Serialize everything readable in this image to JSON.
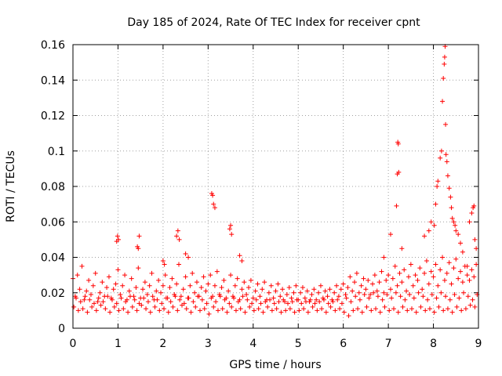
{
  "chart_data": {
    "type": "scatter",
    "title": "Day 185 of 2024, Rate Of TEC Index for receiver cpnt",
    "xlabel": "GPS time / hours",
    "ylabel": "ROTI / TECUs",
    "xlim": [
      0,
      9
    ],
    "ylim": [
      0,
      0.16
    ],
    "grid": true,
    "legend": "none",
    "marker": "plus",
    "color": "#ff0000",
    "xticks": [
      {
        "value": 0,
        "label": "0"
      },
      {
        "value": 1,
        "label": "1"
      },
      {
        "value": 2,
        "label": "2"
      },
      {
        "value": 3,
        "label": "3"
      },
      {
        "value": 4,
        "label": "4"
      },
      {
        "value": 5,
        "label": "5"
      },
      {
        "value": 6,
        "label": "6"
      },
      {
        "value": 7,
        "label": "7"
      },
      {
        "value": 8,
        "label": "8"
      },
      {
        "value": 9,
        "label": "9"
      }
    ],
    "yticks": [
      {
        "value": 0,
        "label": "0"
      },
      {
        "value": 0.02,
        "label": "0.02"
      },
      {
        "value": 0.04,
        "label": "0.04"
      },
      {
        "value": 0.06,
        "label": "0.06"
      },
      {
        "value": 0.08,
        "label": "0.08"
      },
      {
        "value": 0.1,
        "label": "0.1"
      },
      {
        "value": 0.12,
        "label": "0.12"
      },
      {
        "value": 0.14,
        "label": "0.14"
      },
      {
        "value": 0.16,
        "label": "0.16"
      }
    ],
    "series": [
      {
        "name": "ROTI",
        "x": [
          0.0,
          0.05,
          0.1,
          0.15,
          0.2,
          0.25,
          0.3,
          0.35,
          0.4,
          0.45,
          0.5,
          0.55,
          0.6,
          0.65,
          0.7,
          0.75,
          0.8,
          0.85,
          0.9,
          0.95,
          1.0,
          1.05,
          1.1,
          1.15,
          1.2,
          1.25,
          1.3,
          1.35,
          1.4,
          1.45,
          1.5,
          1.55,
          1.6,
          1.65,
          1.7,
          1.75,
          1.8,
          1.85,
          1.9,
          1.95,
          2.0,
          2.05,
          2.1,
          2.15,
          2.2,
          2.25,
          2.3,
          2.35,
          2.4,
          2.45,
          2.5,
          2.55,
          2.6,
          2.65,
          2.7,
          2.75,
          2.8,
          2.85,
          2.9,
          2.95,
          3.0,
          3.05,
          3.1,
          3.15,
          3.2,
          3.25,
          3.3,
          3.35,
          3.4,
          3.45,
          3.5,
          3.55,
          3.6,
          3.65,
          3.7,
          3.75,
          3.8,
          3.85,
          3.9,
          3.95,
          4.0,
          4.05,
          4.1,
          4.15,
          4.2,
          4.25,
          4.3,
          4.35,
          4.4,
          4.45,
          4.5,
          4.55,
          4.6,
          4.65,
          4.7,
          4.75,
          4.8,
          4.85,
          4.9,
          4.95,
          5.0,
          5.05,
          5.1,
          5.15,
          5.2,
          5.25,
          5.3,
          5.35,
          5.4,
          5.45,
          5.5,
          5.55,
          5.6,
          5.65,
          5.7,
          5.75,
          5.8,
          5.85,
          5.9,
          5.95,
          6.0,
          6.05,
          6.1,
          6.15,
          6.2,
          6.25,
          6.3,
          6.35,
          6.4,
          6.45,
          6.5,
          6.55,
          6.6,
          6.65,
          6.7,
          6.75,
          6.8,
          6.85,
          6.9,
          6.95,
          7.0,
          7.05,
          7.1,
          7.15,
          7.2,
          7.25,
          7.3,
          7.35,
          7.4,
          7.45,
          7.5,
          7.55,
          7.6,
          7.65,
          7.7,
          7.75,
          7.8,
          7.85,
          7.9,
          7.95,
          8.0,
          8.05,
          8.1,
          8.15,
          8.2,
          8.25,
          8.3,
          8.35,
          8.4,
          8.45,
          8.5,
          8.55,
          8.6,
          8.65,
          8.7,
          8.75,
          8.8,
          8.85,
          8.9,
          8.95,
          0.02,
          0.12,
          0.22,
          0.32,
          0.42,
          0.52,
          0.62,
          0.72,
          0.82,
          0.92,
          1.02,
          1.12,
          1.22,
          1.32,
          1.42,
          1.52,
          1.62,
          1.72,
          1.82,
          1.92,
          2.02,
          2.12,
          2.22,
          2.32,
          2.42,
          2.52,
          2.62,
          2.72,
          2.82,
          2.92,
          3.02,
          3.12,
          3.22,
          3.32,
          3.42,
          3.52,
          3.62,
          3.72,
          3.82,
          3.92,
          4.02,
          4.12,
          4.22,
          4.32,
          4.42,
          4.52,
          4.62,
          4.72,
          4.82,
          4.92,
          5.02,
          5.12,
          5.22,
          5.32,
          5.42,
          5.52,
          5.62,
          5.72,
          5.82,
          5.92,
          6.02,
          6.12,
          6.22,
          6.32,
          6.42,
          6.52,
          6.62,
          6.72,
          6.82,
          6.92,
          7.02,
          7.12,
          7.22,
          7.32,
          7.42,
          7.52,
          7.62,
          7.72,
          7.82,
          7.92,
          8.02,
          8.12,
          8.22,
          8.32,
          8.42,
          8.52,
          8.62,
          8.72,
          8.82,
          8.92,
          0.07,
          0.17,
          0.27,
          0.37,
          0.47,
          0.57,
          0.67,
          0.77,
          0.87,
          0.97,
          1.07,
          1.17,
          1.27,
          1.37,
          1.47,
          1.57,
          1.67,
          1.77,
          1.87,
          1.97,
          2.07,
          2.17,
          2.27,
          2.37,
          2.47,
          2.57,
          2.67,
          2.77,
          2.87,
          2.97,
          3.07,
          3.17,
          3.27,
          3.37,
          3.47,
          3.57,
          3.67,
          3.77,
          3.87,
          3.97,
          4.07,
          4.17,
          4.27,
          4.37,
          4.47,
          4.57,
          4.67,
          4.77,
          4.87,
          4.97,
          5.07,
          5.17,
          5.27,
          5.37,
          5.47,
          5.57,
          5.67,
          5.77,
          5.87,
          5.97,
          6.07,
          6.17,
          6.27,
          6.37,
          6.47,
          6.57,
          6.67,
          6.77,
          6.87,
          6.97,
          7.07,
          7.17,
          7.27,
          7.37,
          7.47,
          7.57,
          7.67,
          7.77,
          7.87,
          7.97,
          8.07,
          8.17,
          8.27,
          8.37,
          8.47,
          8.57,
          8.67,
          8.77,
          8.87,
          8.97,
          0.97,
          0.99,
          1.01,
          1.43,
          1.45,
          1.47,
          2.0,
          2.03,
          2.3,
          2.33,
          2.36,
          2.5,
          2.56,
          3.08,
          3.1,
          3.12,
          3.15,
          3.48,
          3.5,
          3.52,
          3.7,
          3.75,
          6.9,
          7.05,
          7.18,
          7.2,
          7.22,
          7.21,
          7.23,
          7.3,
          7.8,
          7.9,
          7.95,
          8.02,
          8.05,
          8.08,
          8.1,
          8.15,
          8.18,
          8.2,
          8.22,
          8.24,
          8.25,
          8.26,
          8.27,
          8.28,
          8.3,
          8.32,
          8.35,
          8.38,
          8.4,
          8.42,
          8.45,
          8.48,
          8.5,
          8.55,
          8.6,
          8.65,
          8.75,
          8.8,
          8.85,
          8.88,
          8.9,
          8.92,
          8.95
        ],
        "y": [
          0.028,
          0.018,
          0.03,
          0.022,
          0.035,
          0.016,
          0.021,
          0.027,
          0.019,
          0.024,
          0.031,
          0.015,
          0.02,
          0.026,
          0.018,
          0.023,
          0.029,
          0.017,
          0.022,
          0.025,
          0.033,
          0.019,
          0.024,
          0.03,
          0.016,
          0.021,
          0.028,
          0.018,
          0.023,
          0.034,
          0.017,
          0.022,
          0.026,
          0.019,
          0.024,
          0.031,
          0.016,
          0.021,
          0.027,
          0.02,
          0.024,
          0.03,
          0.017,
          0.023,
          0.028,
          0.019,
          0.025,
          0.036,
          0.018,
          0.022,
          0.029,
          0.017,
          0.024,
          0.031,
          0.02,
          0.026,
          0.018,
          0.023,
          0.029,
          0.021,
          0.025,
          0.03,
          0.018,
          0.024,
          0.032,
          0.019,
          0.023,
          0.027,
          0.017,
          0.021,
          0.03,
          0.018,
          0.024,
          0.028,
          0.016,
          0.022,
          0.026,
          0.019,
          0.023,
          0.027,
          0.017,
          0.021,
          0.025,
          0.018,
          0.022,
          0.026,
          0.016,
          0.02,
          0.024,
          0.017,
          0.021,
          0.025,
          0.018,
          0.022,
          0.015,
          0.019,
          0.023,
          0.017,
          0.02,
          0.024,
          0.016,
          0.02,
          0.023,
          0.017,
          0.021,
          0.015,
          0.019,
          0.022,
          0.016,
          0.02,
          0.024,
          0.017,
          0.021,
          0.018,
          0.022,
          0.016,
          0.02,
          0.024,
          0.018,
          0.022,
          0.025,
          0.019,
          0.023,
          0.029,
          0.021,
          0.026,
          0.031,
          0.02,
          0.024,
          0.028,
          0.022,
          0.027,
          0.019,
          0.025,
          0.03,
          0.021,
          0.026,
          0.032,
          0.02,
          0.027,
          0.03,
          0.022,
          0.028,
          0.035,
          0.024,
          0.031,
          0.026,
          0.033,
          0.021,
          0.029,
          0.036,
          0.024,
          0.03,
          0.027,
          0.034,
          0.022,
          0.031,
          0.038,
          0.025,
          0.032,
          0.029,
          0.036,
          0.024,
          0.033,
          0.04,
          0.027,
          0.031,
          0.037,
          0.025,
          0.034,
          0.039,
          0.028,
          0.032,
          0.026,
          0.035,
          0.03,
          0.027,
          0.033,
          0.029,
          0.036,
          0.012,
          0.01,
          0.011,
          0.009,
          0.012,
          0.01,
          0.013,
          0.011,
          0.009,
          0.012,
          0.01,
          0.011,
          0.009,
          0.012,
          0.01,
          0.013,
          0.011,
          0.009,
          0.012,
          0.01,
          0.011,
          0.009,
          0.012,
          0.01,
          0.013,
          0.011,
          0.009,
          0.012,
          0.01,
          0.011,
          0.008,
          0.012,
          0.01,
          0.011,
          0.009,
          0.012,
          0.01,
          0.011,
          0.009,
          0.012,
          0.01,
          0.011,
          0.009,
          0.012,
          0.01,
          0.011,
          0.009,
          0.01,
          0.011,
          0.009,
          0.01,
          0.011,
          0.009,
          0.012,
          0.01,
          0.011,
          0.009,
          0.012,
          0.01,
          0.011,
          0.009,
          0.007,
          0.01,
          0.011,
          0.009,
          0.012,
          0.01,
          0.011,
          0.009,
          0.012,
          0.01,
          0.011,
          0.009,
          0.012,
          0.01,
          0.011,
          0.009,
          0.012,
          0.01,
          0.011,
          0.009,
          0.012,
          0.01,
          0.011,
          0.009,
          0.012,
          0.01,
          0.011,
          0.013,
          0.012,
          0.017,
          0.015,
          0.018,
          0.016,
          0.014,
          0.017,
          0.015,
          0.018,
          0.016,
          0.014,
          0.017,
          0.015,
          0.018,
          0.016,
          0.014,
          0.017,
          0.015,
          0.018,
          0.016,
          0.014,
          0.017,
          0.015,
          0.018,
          0.016,
          0.014,
          0.017,
          0.015,
          0.018,
          0.016,
          0.014,
          0.017,
          0.015,
          0.018,
          0.016,
          0.014,
          0.017,
          0.015,
          0.018,
          0.016,
          0.014,
          0.016,
          0.014,
          0.015,
          0.016,
          0.014,
          0.015,
          0.016,
          0.014,
          0.015,
          0.016,
          0.014,
          0.015,
          0.016,
          0.014,
          0.015,
          0.016,
          0.014,
          0.015,
          0.016,
          0.014,
          0.017,
          0.015,
          0.018,
          0.016,
          0.019,
          0.017,
          0.02,
          0.018,
          0.016,
          0.019,
          0.017,
          0.02,
          0.018,
          0.016,
          0.019,
          0.017,
          0.02,
          0.018,
          0.016,
          0.019,
          0.017,
          0.02,
          0.018,
          0.016,
          0.019,
          0.017,
          0.02,
          0.018,
          0.016,
          0.019,
          0.049,
          0.052,
          0.05,
          0.046,
          0.045,
          0.052,
          0.038,
          0.036,
          0.052,
          0.055,
          0.05,
          0.042,
          0.04,
          0.076,
          0.075,
          0.07,
          0.068,
          0.056,
          0.058,
          0.053,
          0.041,
          0.038,
          0.04,
          0.053,
          0.069,
          0.087,
          0.104,
          0.105,
          0.088,
          0.045,
          0.052,
          0.055,
          0.06,
          0.058,
          0.07,
          0.08,
          0.083,
          0.096,
          0.1,
          0.128,
          0.141,
          0.149,
          0.153,
          0.159,
          0.115,
          0.098,
          0.094,
          0.086,
          0.079,
          0.074,
          0.068,
          0.062,
          0.06,
          0.058,
          0.055,
          0.053,
          0.048,
          0.043,
          0.035,
          0.06,
          0.065,
          0.068,
          0.069,
          0.05,
          0.045
        ]
      }
    ]
  }
}
